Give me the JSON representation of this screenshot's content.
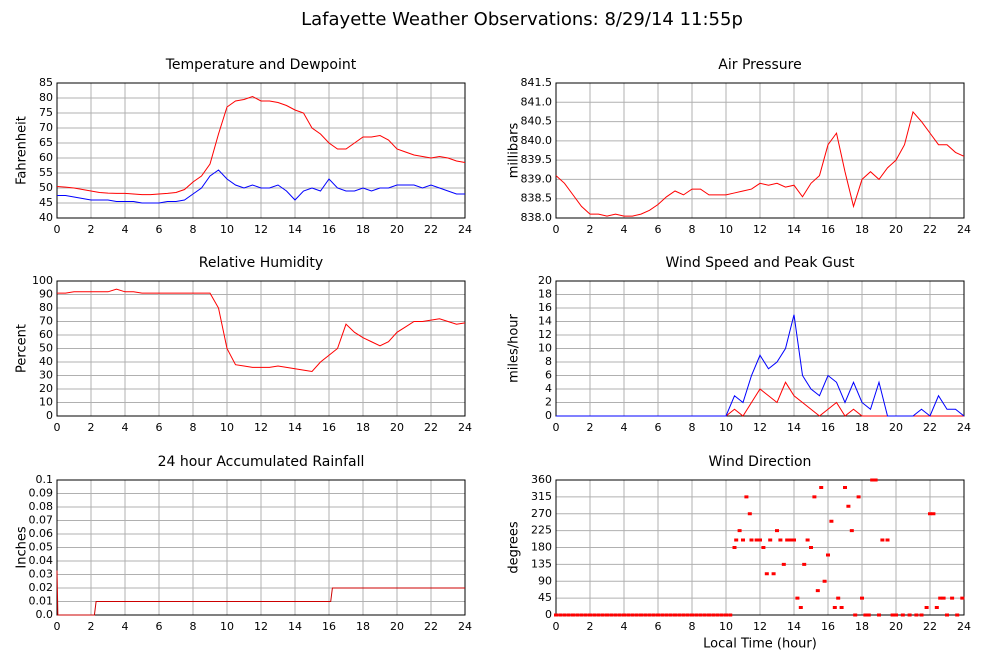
{
  "title": "Lafayette Weather Observations: 8/29/14 11:55p",
  "chart_data": [
    {
      "type": "line",
      "title": "Temperature and Dewpoint",
      "y_label": "Fahrenheit",
      "xlim": [
        0,
        24
      ],
      "xticks": [
        0,
        2,
        4,
        6,
        8,
        10,
        12,
        14,
        16,
        18,
        20,
        22,
        24
      ],
      "ylim": [
        40,
        85
      ],
      "yticks": [
        40,
        45,
        50,
        55,
        60,
        65,
        70,
        75,
        80,
        85
      ],
      "grid": true,
      "x": [
        0,
        0.5,
        1,
        1.5,
        2,
        2.5,
        3,
        3.5,
        4,
        4.5,
        5,
        5.5,
        6,
        6.5,
        7,
        7.5,
        8,
        8.5,
        9,
        9.5,
        10,
        10.5,
        11,
        11.5,
        12,
        12.5,
        13,
        13.5,
        14,
        14.5,
        15,
        15.5,
        16,
        16.5,
        17,
        17.5,
        18,
        18.5,
        19,
        19.5,
        20,
        20.5,
        21,
        21.5,
        22,
        22.5,
        23,
        23.5,
        24
      ],
      "series": [
        {
          "color": "#ff0000",
          "values": [
            50.5,
            50.3,
            50,
            49.5,
            49,
            48.5,
            48.3,
            48.2,
            48.2,
            48,
            47.8,
            47.8,
            48,
            48.2,
            48.5,
            49.5,
            52,
            54,
            58,
            68,
            77,
            79,
            79.5,
            80.5,
            79,
            79,
            78.5,
            77.5,
            76,
            75,
            70,
            68,
            65,
            63,
            63,
            65,
            67,
            67,
            67.5,
            66,
            63,
            62,
            61,
            60.5,
            60,
            60.5,
            60,
            59,
            58.5
          ]
        },
        {
          "color": "#0000ff",
          "values": [
            47.5,
            47.5,
            47,
            46.5,
            46,
            46,
            46,
            45.5,
            45.5,
            45.5,
            45,
            45,
            45,
            45.5,
            45.5,
            46,
            48,
            50,
            54,
            56,
            53,
            51,
            50,
            51,
            50,
            50,
            51,
            49,
            46,
            49,
            50,
            49,
            53,
            50,
            49,
            49,
            50,
            49,
            50,
            50,
            51,
            51,
            51,
            50,
            51,
            50,
            49,
            48,
            48
          ]
        }
      ]
    },
    {
      "type": "line",
      "title": "Air Pressure",
      "y_label": "millibars",
      "xlim": [
        0,
        24
      ],
      "xticks": [
        0,
        2,
        4,
        6,
        8,
        10,
        12,
        14,
        16,
        18,
        20,
        22,
        24
      ],
      "ylim": [
        838,
        841.5
      ],
      "yticks": [
        {
          "value": 838,
          "label": "838.0"
        },
        838.5,
        {
          "value": 839,
          "label": "839.0"
        },
        839.5,
        {
          "value": 840,
          "label": "840.0"
        },
        840.5,
        {
          "value": 841,
          "label": "841.0"
        },
        841.5
      ],
      "grid": true,
      "x": [
        0,
        0.5,
        1,
        1.5,
        2,
        2.5,
        3,
        3.5,
        4,
        4.5,
        5,
        5.5,
        6,
        6.5,
        7,
        7.5,
        8,
        8.5,
        9,
        9.5,
        10,
        10.5,
        11,
        11.5,
        12,
        12.5,
        13,
        13.5,
        14,
        14.5,
        15,
        15.5,
        16,
        16.5,
        17,
        17.5,
        18,
        18.5,
        19,
        19.5,
        20,
        20.5,
        21,
        21.5,
        22,
        22.5,
        23,
        23.5,
        24
      ],
      "series": [
        {
          "color": "#ff0000",
          "values": [
            839.1,
            838.9,
            838.6,
            838.3,
            838.1,
            838.1,
            838.05,
            838.1,
            838.05,
            838.05,
            838.1,
            838.2,
            838.35,
            838.55,
            838.7,
            838.6,
            838.75,
            838.75,
            838.6,
            838.6,
            838.6,
            838.65,
            838.7,
            838.75,
            838.9,
            838.85,
            838.9,
            838.8,
            838.85,
            838.55,
            838.9,
            839.1,
            839.9,
            840.2,
            839.2,
            838.3,
            839.0,
            839.2,
            839.0,
            839.3,
            839.5,
            839.9,
            840.75,
            840.5,
            840.2,
            839.9,
            839.9,
            839.7,
            839.6
          ]
        }
      ]
    },
    {
      "type": "line",
      "title": "Relative Humidity",
      "y_label": "Percent",
      "xlim": [
        0,
        24
      ],
      "xticks": [
        0,
        2,
        4,
        6,
        8,
        10,
        12,
        14,
        16,
        18,
        20,
        22,
        24
      ],
      "ylim": [
        0,
        100
      ],
      "yticks": [
        0,
        10,
        20,
        30,
        40,
        50,
        60,
        70,
        80,
        90,
        100
      ],
      "grid": true,
      "x": [
        0,
        0.5,
        1,
        1.5,
        2,
        2.5,
        3,
        3.5,
        4,
        4.5,
        5,
        5.5,
        6,
        6.5,
        7,
        7.5,
        8,
        8.5,
        9,
        9.5,
        10,
        10.5,
        11,
        11.5,
        12,
        12.5,
        13,
        13.5,
        14,
        14.5,
        15,
        15.5,
        16,
        16.5,
        17,
        17.5,
        18,
        18.5,
        19,
        19.5,
        20,
        20.5,
        21,
        21.5,
        22,
        22.5,
        23,
        23.5,
        24
      ],
      "series": [
        {
          "color": "#ff0000",
          "values": [
            91,
            91,
            92,
            92,
            92,
            92,
            92,
            94,
            92,
            92,
            91,
            91,
            91,
            91,
            91,
            91,
            91,
            91,
            91,
            80,
            50,
            38,
            37,
            36,
            36,
            36,
            37,
            36,
            35,
            34,
            33,
            40,
            45,
            50,
            68,
            62,
            58,
            55,
            52,
            55,
            62,
            66,
            70,
            70,
            71,
            72,
            70,
            68,
            69
          ]
        }
      ]
    },
    {
      "type": "line",
      "title": "Wind Speed and Peak Gust",
      "y_label": "miles/hour",
      "xlim": [
        0,
        24
      ],
      "xticks": [
        0,
        2,
        4,
        6,
        8,
        10,
        12,
        14,
        16,
        18,
        20,
        22,
        24
      ],
      "ylim": [
        0,
        20
      ],
      "yticks": [
        0,
        2,
        4,
        6,
        8,
        10,
        12,
        14,
        16,
        18,
        20
      ],
      "grid": true,
      "x": [
        0,
        0.5,
        1,
        1.5,
        2,
        2.5,
        3,
        3.5,
        4,
        4.5,
        5,
        5.5,
        6,
        6.5,
        7,
        7.5,
        8,
        8.5,
        9,
        9.5,
        10,
        10.5,
        11,
        11.5,
        12,
        12.5,
        13,
        13.5,
        14,
        14.5,
        15,
        15.5,
        16,
        16.5,
        17,
        17.5,
        18,
        18.5,
        19,
        19.5,
        20,
        20.5,
        21,
        21.5,
        22,
        22.5,
        23,
        23.5,
        24
      ],
      "series": [
        {
          "color": "#ff0000",
          "values": [
            0,
            0,
            0,
            0,
            0,
            0,
            0,
            0,
            0,
            0,
            0,
            0,
            0,
            0,
            0,
            0,
            0,
            0,
            0,
            0,
            0,
            1,
            0,
            2,
            4,
            3,
            2,
            5,
            3,
            2,
            1,
            0,
            1,
            2,
            0,
            1,
            0,
            0,
            0,
            0,
            0,
            0,
            0,
            0,
            0,
            0,
            0,
            0,
            0
          ]
        },
        {
          "color": "#0000ff",
          "values": [
            0,
            0,
            0,
            0,
            0,
            0,
            0,
            0,
            0,
            0,
            0,
            0,
            0,
            0,
            0,
            0,
            0,
            0,
            0,
            0,
            0,
            3,
            2,
            6,
            9,
            7,
            8,
            10,
            15,
            6,
            4,
            3,
            6,
            5,
            2,
            5,
            2,
            1,
            5,
            0,
            0,
            0,
            0,
            1,
            0,
            3,
            1,
            1,
            0
          ]
        }
      ]
    },
    {
      "type": "line",
      "title": "24 hour Accumulated Rainfall",
      "y_label": "Inches",
      "xlim": [
        0,
        24
      ],
      "xticks": [
        0,
        2,
        4,
        6,
        8,
        10,
        12,
        14,
        16,
        18,
        20,
        22,
        24
      ],
      "ylim": [
        0,
        0.1
      ],
      "yticks": [
        {
          "value": 0,
          "label": "0.0"
        },
        0.01,
        0.02,
        0.03,
        0.04,
        0.05,
        0.06,
        0.07,
        0.08,
        0.09,
        0.1
      ],
      "grid": true,
      "x": [
        0,
        0.05,
        2.2,
        2.3,
        16.1,
        16.2,
        24
      ],
      "series": [
        {
          "color": "#cc0000",
          "values": [
            0.033,
            0,
            0,
            0.01,
            0.01,
            0.02,
            0.02
          ]
        }
      ]
    },
    {
      "type": "scatter",
      "title": "Wind Direction",
      "y_label": "degrees",
      "x_label": "Local Time (hour)",
      "xlim": [
        0,
        24
      ],
      "xticks": [
        0,
        2,
        4,
        6,
        8,
        10,
        12,
        14,
        16,
        18,
        20,
        22,
        24
      ],
      "ylim": [
        0,
        360
      ],
      "yticks": [
        0,
        45,
        90,
        135,
        180,
        225,
        270,
        315,
        360
      ],
      "grid": true,
      "x": [
        0,
        0.25,
        0.5,
        0.75,
        1,
        1.25,
        1.5,
        1.75,
        2,
        2.25,
        2.5,
        2.75,
        3,
        3.25,
        3.5,
        3.75,
        4,
        4.25,
        4.5,
        4.75,
        5,
        5.25,
        5.5,
        5.75,
        6,
        6.25,
        6.5,
        6.75,
        7,
        7.25,
        7.5,
        7.75,
        8,
        8.25,
        8.5,
        8.75,
        9,
        9.25,
        9.5,
        9.75,
        10,
        10.25,
        10.5,
        10.6,
        10.8,
        11,
        11.2,
        11.4,
        11.5,
        11.8,
        12,
        12.2,
        12.4,
        12.6,
        12.8,
        13,
        13.2,
        13.4,
        13.6,
        13.8,
        14,
        14.2,
        14.4,
        14.6,
        14.8,
        15,
        15.2,
        15.4,
        15.6,
        15.8,
        16,
        16.2,
        16.4,
        16.6,
        16.8,
        17,
        17.2,
        17.4,
        17.6,
        17.8,
        18,
        18.2,
        18.4,
        18.6,
        18.8,
        19,
        19.2,
        19.5,
        19.8,
        20,
        20.4,
        20.8,
        21.2,
        21.5,
        21.8,
        22,
        22.2,
        22.4,
        22.6,
        22.8,
        23,
        23.3,
        23.6,
        23.9
      ],
      "series": [
        {
          "color": "#ff0000",
          "values": [
            0,
            0,
            0,
            0,
            0,
            0,
            0,
            0,
            0,
            0,
            0,
            0,
            0,
            0,
            0,
            0,
            0,
            0,
            0,
            0,
            0,
            0,
            0,
            0,
            0,
            0,
            0,
            0,
            0,
            0,
            0,
            0,
            0,
            0,
            0,
            0,
            0,
            0,
            0,
            0,
            0,
            0,
            180,
            200,
            225,
            200,
            315,
            270,
            200,
            200,
            200,
            180,
            110,
            200,
            110,
            225,
            200,
            135,
            200,
            200,
            200,
            45,
            20,
            135,
            200,
            180,
            315,
            65,
            340,
            90,
            160,
            250,
            20,
            45,
            20,
            340,
            290,
            225,
            0,
            315,
            45,
            0,
            0,
            360,
            360,
            0,
            200,
            200,
            0,
            0,
            0,
            0,
            0,
            0,
            20,
            270,
            270,
            20,
            45,
            45,
            0,
            45,
            0,
            45
          ]
        }
      ]
    }
  ]
}
